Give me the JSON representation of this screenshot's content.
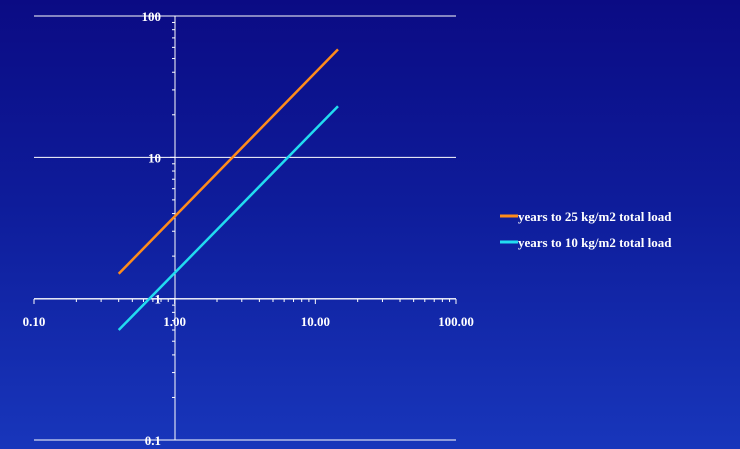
{
  "chart_data": {
    "type": "line",
    "title": "",
    "xlabel": "",
    "ylabel": "",
    "x_scale": "log",
    "y_scale": "log",
    "xlim": [
      0.1,
      100
    ],
    "ylim": [
      0.1,
      100
    ],
    "x_ticks": [
      {
        "value": 0.1,
        "label": "0.10"
      },
      {
        "value": 1,
        "label": "1.00"
      },
      {
        "value": 10,
        "label": "10.00"
      },
      {
        "value": 100,
        "label": "100.00"
      }
    ],
    "y_ticks": [
      {
        "value": 0.1,
        "label": "0.1"
      },
      {
        "value": 1,
        "label": "1"
      },
      {
        "value": 10,
        "label": "10"
      },
      {
        "value": 100,
        "label": "100"
      }
    ],
    "grid": "horizontal",
    "legend_position": "right",
    "series": [
      {
        "name": "years to 25 kg/m2 total load",
        "color": "#ff8c1a",
        "x": [
          0.4,
          14.5
        ],
        "y": [
          1.5,
          58
        ]
      },
      {
        "name": "years to 10 kg/m2 total load",
        "color": "#22dcf0",
        "x": [
          0.4,
          14.5
        ],
        "y": [
          0.6,
          23
        ]
      }
    ]
  }
}
